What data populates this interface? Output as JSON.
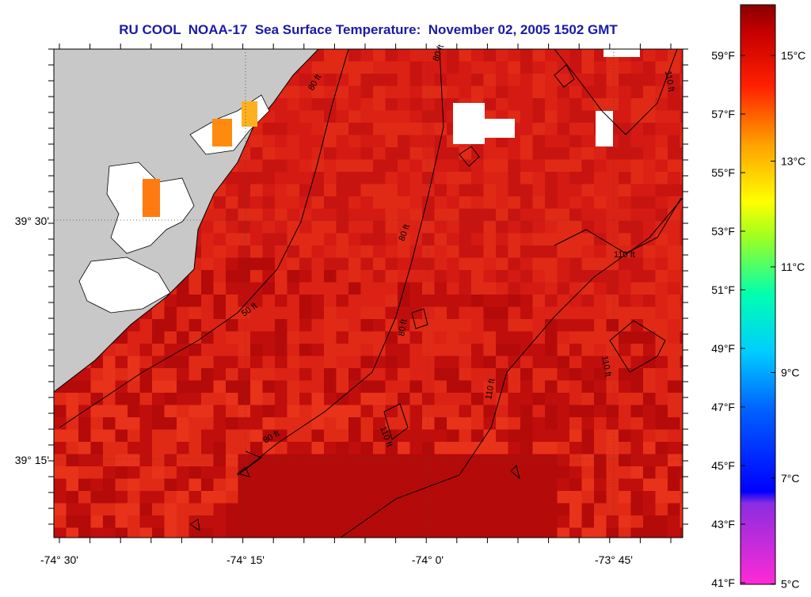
{
  "title": "RU COOL  NOAA-17  Sea Surface Temperature:  November 02, 2005 1502 GMT",
  "lat_labels": [
    "39° 30'",
    "39° 15'"
  ],
  "lon_labels": [
    "-74° 30'",
    "-74° 15'",
    "-74° 0'",
    "-73° 45'"
  ],
  "contour_labels": [
    "50 ft",
    "80 ft",
    "80 ft",
    "80 ft",
    "110 ft",
    "110 ft",
    "110 ft",
    "110 ft",
    "110 ft",
    "80 ft",
    "80 ft"
  ],
  "colorbar": {
    "fahrenheit_labels": [
      "59°F",
      "57°F",
      "55°F",
      "53°F",
      "51°F",
      "49°F",
      "47°F",
      "45°F",
      "43°F",
      "41°F"
    ],
    "celsius_labels": [
      "15°C",
      "13°C",
      "11°C",
      "9°C",
      "7°C",
      "5°C"
    ],
    "range_c": [
      5,
      16
    ]
  },
  "colors": {
    "title": "#1a1aa8",
    "land": "#c8c8c8",
    "cloud_mask": "#ffffff",
    "sst_warm": "#c41010",
    "sst_warmest": "#9a0808"
  }
}
